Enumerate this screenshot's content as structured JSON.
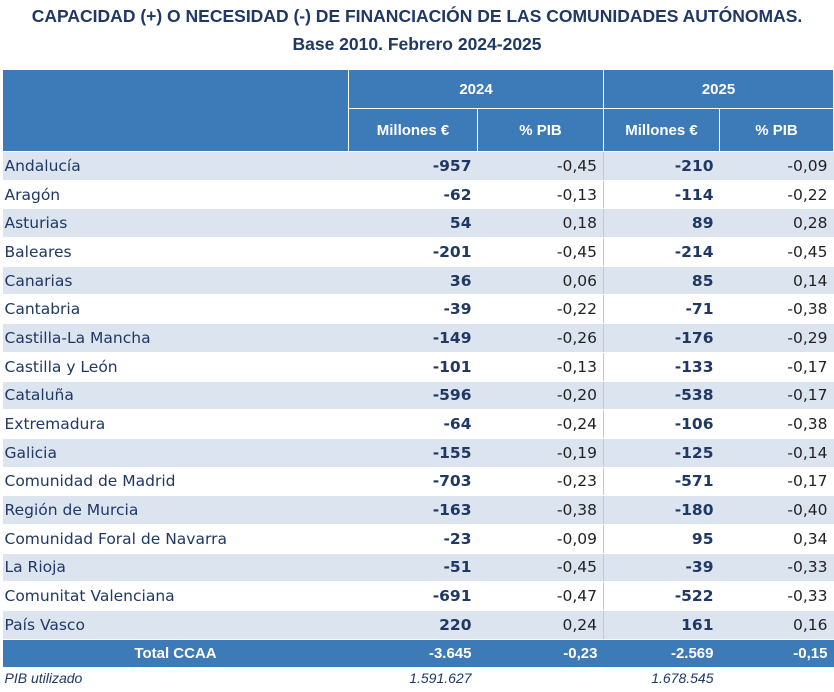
{
  "title_line1": "CAPACIDAD (+) O NECESIDAD (-) DE FINANCIACIÓN DE LAS COMUNIDADES AUTÓNOMAS.",
  "title_line2": "Base 2010. Febrero 2024-2025",
  "years": [
    "2024",
    "2025"
  ],
  "subheaders": [
    "Millones €",
    "% PIB",
    "Millones €",
    "% PIB"
  ],
  "rows": [
    {
      "name": "Andalucía",
      "m2024": "-957",
      "p2024": "-0,45",
      "m2025": "-210",
      "p2025": "-0,09"
    },
    {
      "name": "Aragón",
      "m2024": "-62",
      "p2024": "-0,13",
      "m2025": "-114",
      "p2025": "-0,22"
    },
    {
      "name": "Asturias",
      "m2024": "54",
      "p2024": "0,18",
      "m2025": "89",
      "p2025": "0,28"
    },
    {
      "name": "Baleares",
      "m2024": "-201",
      "p2024": "-0,45",
      "m2025": "-214",
      "p2025": "-0,45"
    },
    {
      "name": "Canarias",
      "m2024": "36",
      "p2024": "0,06",
      "m2025": "85",
      "p2025": "0,14"
    },
    {
      "name": "Cantabria",
      "m2024": "-39",
      "p2024": "-0,22",
      "m2025": "-71",
      "p2025": "-0,38"
    },
    {
      "name": "Castilla-La Mancha",
      "m2024": "-149",
      "p2024": "-0,26",
      "m2025": "-176",
      "p2025": "-0,29"
    },
    {
      "name": "Castilla y León",
      "m2024": "-101",
      "p2024": "-0,13",
      "m2025": "-133",
      "p2025": "-0,17"
    },
    {
      "name": "Cataluña",
      "m2024": "-596",
      "p2024": "-0,20",
      "m2025": "-538",
      "p2025": "-0,17"
    },
    {
      "name": "Extremadura",
      "m2024": "-64",
      "p2024": "-0,24",
      "m2025": "-106",
      "p2025": "-0,38"
    },
    {
      "name": "Galicia",
      "m2024": "-155",
      "p2024": "-0,19",
      "m2025": "-125",
      "p2025": "-0,14"
    },
    {
      "name": "Comunidad de Madrid",
      "m2024": "-703",
      "p2024": "-0,23",
      "m2025": "-571",
      "p2025": "-0,17"
    },
    {
      "name": "Región de Murcia",
      "m2024": "-163",
      "p2024": "-0,38",
      "m2025": "-180",
      "p2025": "-0,40"
    },
    {
      "name": "Comunidad Foral de Navarra",
      "m2024": "-23",
      "p2024": "-0,09",
      "m2025": "95",
      "p2025": "0,34"
    },
    {
      "name": "La Rioja",
      "m2024": "-51",
      "p2024": "-0,45",
      "m2025": "-39",
      "p2025": "-0,33"
    },
    {
      "name": "Comunitat Valenciana",
      "m2024": "-691",
      "p2024": "-0,47",
      "m2025": "-522",
      "p2025": "-0,33"
    },
    {
      "name": "País Vasco",
      "m2024": "220",
      "p2024": "0,24",
      "m2025": "161",
      "p2025": "0,16"
    }
  ],
  "total": {
    "name": "Total CCAA",
    "m2024": "-3.645",
    "p2024": "-0,23",
    "m2025": "-2.569",
    "p2025": "-0,15"
  },
  "footer": {
    "label": "PIB utilizado",
    "pib2024": "1.591.627",
    "pib2025": "1.678.545"
  },
  "colors": {
    "header_bg": "#3d7ab8",
    "alt_row": "#dce4f0",
    "text": "#1f3864"
  }
}
